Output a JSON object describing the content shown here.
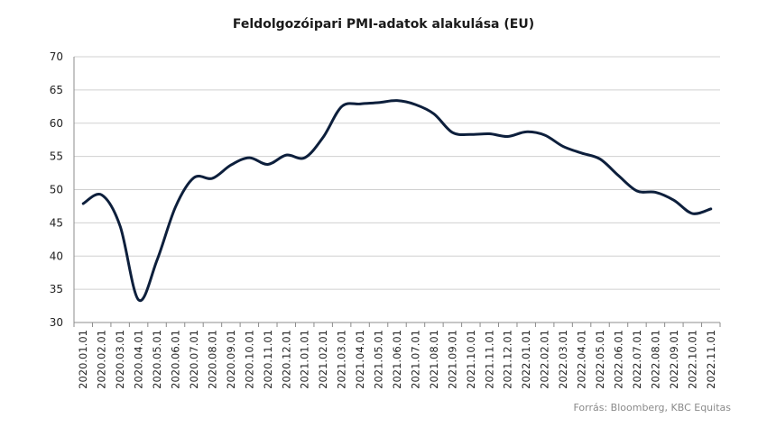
{
  "chart_data": {
    "type": "line",
    "title": "Feldolgozóipari PMI-adatok alakulása (EU)",
    "xlabel": "",
    "ylabel": "",
    "ylim": [
      30,
      70
    ],
    "yticks": [
      30,
      35,
      40,
      45,
      50,
      55,
      60,
      65,
      70
    ],
    "grid": true,
    "legend": "none",
    "line_color": "#0d1f3c",
    "categories": [
      "2020.01.01",
      "2020.02.01",
      "2020.03.01",
      "2020.04.01",
      "2020.05.01",
      "2020.06.01",
      "2020.07.01",
      "2020.08.01",
      "2020.09.01",
      "2020.10.01",
      "2020.11.01",
      "2020.12.01",
      "2021.01.01",
      "2021.02.01",
      "2021.03.01",
      "2021.04.01",
      "2021.05.01",
      "2021.06.01",
      "2021.07.01",
      "2021.08.01",
      "2021.09.01",
      "2021.10.01",
      "2021.11.01",
      "2021.12.01",
      "2022.01.01",
      "2022.02.01",
      "2022.03.01",
      "2022.04.01",
      "2022.05.01",
      "2022.06.01",
      "2022.07.01",
      "2022.08.01",
      "2022.09.01",
      "2022.10.01",
      "2022.11.01"
    ],
    "series": [
      {
        "values": [
          47.9,
          49.2,
          44.5,
          33.4,
          39.4,
          47.4,
          51.8,
          51.7,
          53.7,
          54.8,
          53.8,
          55.2,
          54.8,
          57.9,
          62.5,
          62.9,
          63.1,
          63.4,
          62.8,
          61.4,
          58.6,
          58.3,
          58.4,
          58.0,
          58.7,
          58.2,
          56.5,
          55.5,
          54.6,
          52.1,
          49.8,
          49.6,
          48.4,
          46.4,
          47.1
        ]
      }
    ]
  },
  "source_note": "Forrás: Bloomberg,  KBC Equitas"
}
